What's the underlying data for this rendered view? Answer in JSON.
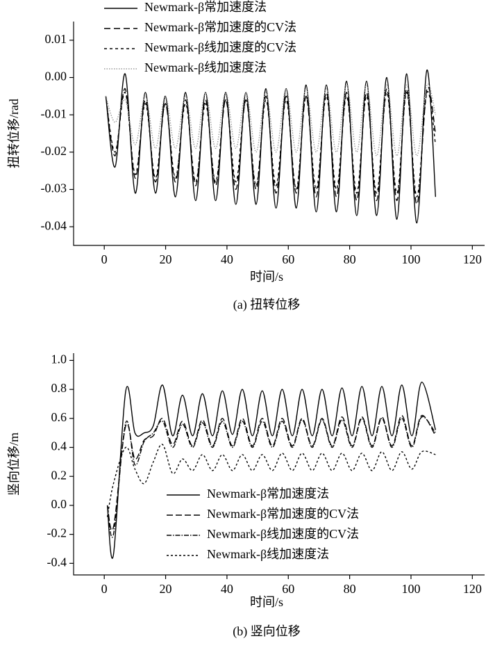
{
  "chart_data": [
    {
      "type": "line",
      "caption": "(a) 扭转位移",
      "x_label": "时间/s",
      "y_label": "扭转位移/rad",
      "xlim": [
        -10,
        124
      ],
      "xticks": [
        0,
        20,
        40,
        60,
        80,
        100,
        120
      ],
      "ylim": [
        -0.045,
        0.015
      ],
      "yticks": [
        0.01,
        {
          "value": 0,
          "label": "0.00"
        },
        -0.01,
        -0.02,
        -0.03,
        -0.04
      ],
      "legend": "upper left",
      "x": [
        0.5,
        3.5,
        6.8,
        10.1,
        13.4,
        16.7,
        19.9,
        23.2,
        26.5,
        29.8,
        33.0,
        36.3,
        39.6,
        42.9,
        46.2,
        49.5,
        52.7,
        56.0,
        59.3,
        62.6,
        65.8,
        69.1,
        72.4,
        75.7,
        79.0,
        82.3,
        85.5,
        88.8,
        92.1,
        95.4,
        98.6,
        101.9,
        105.2,
        108.0
      ],
      "series": [
        {
          "name": "Newmark-β常加速度法",
          "color": "#000000",
          "dash": "none",
          "values": [
            -0.005,
            -0.024,
            0.001,
            -0.031,
            -0.004,
            -0.031,
            -0.005,
            -0.032,
            -0.004,
            -0.033,
            -0.004,
            -0.033,
            -0.004,
            -0.034,
            -0.004,
            -0.034,
            -0.003,
            -0.035,
            -0.003,
            -0.035,
            -0.002,
            -0.036,
            -0.002,
            -0.036,
            -0.001,
            -0.037,
            -0.001,
            -0.037,
            0.0,
            -0.038,
            0.001,
            -0.039,
            0.002,
            -0.032
          ]
        },
        {
          "name": "Newmark-β常加速度的CV法",
          "color": "#000000",
          "dash": "9,5",
          "values": [
            -0.005,
            -0.021,
            -0.003,
            -0.027,
            -0.006,
            -0.028,
            -0.007,
            -0.028,
            -0.006,
            -0.029,
            -0.006,
            -0.029,
            -0.006,
            -0.03,
            -0.006,
            -0.03,
            -0.005,
            -0.031,
            -0.005,
            -0.031,
            -0.005,
            -0.032,
            -0.004,
            -0.032,
            -0.004,
            -0.033,
            -0.004,
            -0.033,
            -0.003,
            -0.033,
            -0.003,
            -0.034,
            -0.003,
            -0.015
          ]
        },
        {
          "name": "Newmark-β线加速度的CV法",
          "color": "#000000",
          "dash": "4,4",
          "values": [
            -0.005,
            -0.02,
            -0.004,
            -0.026,
            -0.007,
            -0.027,
            -0.007,
            -0.027,
            -0.007,
            -0.028,
            -0.007,
            -0.028,
            -0.006,
            -0.028,
            -0.006,
            -0.029,
            -0.006,
            -0.029,
            -0.006,
            -0.03,
            -0.005,
            -0.03,
            -0.005,
            -0.03,
            -0.005,
            -0.031,
            -0.005,
            -0.031,
            -0.004,
            -0.031,
            -0.004,
            -0.032,
            -0.004,
            -0.018
          ]
        },
        {
          "name": "Newmark-β线加速度法",
          "color": "#999999",
          "dash": "1.5,2",
          "values": [
            -0.005,
            -0.012,
            -0.006,
            -0.018,
            -0.005,
            -0.019,
            -0.005,
            -0.019,
            -0.005,
            -0.019,
            -0.004,
            -0.019,
            -0.004,
            -0.019,
            -0.004,
            -0.02,
            -0.004,
            -0.02,
            -0.003,
            -0.02,
            -0.003,
            -0.02,
            -0.003,
            -0.02,
            -0.002,
            -0.02,
            -0.002,
            -0.021,
            -0.002,
            -0.021,
            -0.002,
            -0.021,
            -0.002,
            -0.01
          ]
        }
      ]
    },
    {
      "type": "line",
      "caption": "(b) 竖向位移",
      "x_label": "时间/s",
      "y_label": "竖向位移/m",
      "xlim": [
        -10,
        124
      ],
      "xticks": [
        0,
        20,
        40,
        60,
        80,
        100,
        120
      ],
      "ylim": [
        -0.48,
        1.05
      ],
      "yticks": [
        {
          "value": 1,
          "label": "1.0"
        },
        0.8,
        0.6,
        0.4,
        0.2,
        {
          "value": 0,
          "label": "0.0"
        },
        -0.2,
        -0.4
      ],
      "legend": "lower right",
      "x": [
        1,
        3,
        7,
        10,
        13,
        16,
        19,
        22.3,
        25.5,
        28.8,
        32,
        35.3,
        38.5,
        41.8,
        45,
        48.3,
        51.5,
        54.8,
        58,
        61.3,
        64.5,
        67.8,
        71,
        74.3,
        77.5,
        80.8,
        84,
        87.3,
        90.5,
        93.8,
        97,
        100.3,
        103.5,
        108
      ],
      "series": [
        {
          "name": "Newmark-β常加速度法",
          "color": "#000000",
          "dash": "none",
          "values": [
            0,
            -0.34,
            0.79,
            0.5,
            0.5,
            0.55,
            0.83,
            0.48,
            0.76,
            0.48,
            0.77,
            0.48,
            0.79,
            0.49,
            0.8,
            0.48,
            0.79,
            0.48,
            0.8,
            0.48,
            0.8,
            0.48,
            0.8,
            0.48,
            0.81,
            0.48,
            0.82,
            0.48,
            0.82,
            0.48,
            0.83,
            0.48,
            0.85,
            0.52
          ]
        },
        {
          "name": "Newmark-β常加速度的CV法",
          "color": "#000000",
          "dash": "9,4",
          "values": [
            0,
            -0.15,
            0.55,
            0.32,
            0.45,
            0.48,
            0.6,
            0.42,
            0.58,
            0.41,
            0.59,
            0.41,
            0.6,
            0.41,
            0.6,
            0.41,
            0.6,
            0.41,
            0.6,
            0.41,
            0.6,
            0.41,
            0.6,
            0.41,
            0.61,
            0.41,
            0.61,
            0.41,
            0.61,
            0.41,
            0.62,
            0.41,
            0.62,
            0.48
          ]
        },
        {
          "name": "Newmark-β线加速度的CV法",
          "color": "#000000",
          "dash": "7,2,1.5,2",
          "values": [
            0,
            -0.2,
            0.57,
            0.28,
            0.44,
            0.5,
            0.58,
            0.4,
            0.56,
            0.4,
            0.57,
            0.4,
            0.58,
            0.4,
            0.58,
            0.4,
            0.58,
            0.4,
            0.58,
            0.4,
            0.59,
            0.4,
            0.59,
            0.4,
            0.59,
            0.4,
            0.6,
            0.4,
            0.6,
            0.4,
            0.6,
            0.4,
            0.61,
            0.5
          ]
        },
        {
          "name": "Newmark-β线加速度法",
          "color": "#000000",
          "dash": "3,3",
          "values": [
            -0.08,
            0.15,
            0.4,
            0.25,
            0.15,
            0.3,
            0.42,
            0.22,
            0.32,
            0.24,
            0.35,
            0.24,
            0.35,
            0.24,
            0.35,
            0.24,
            0.35,
            0.24,
            0.36,
            0.24,
            0.36,
            0.24,
            0.36,
            0.24,
            0.36,
            0.24,
            0.36,
            0.24,
            0.37,
            0.24,
            0.37,
            0.25,
            0.37,
            0.35
          ]
        }
      ]
    }
  ]
}
